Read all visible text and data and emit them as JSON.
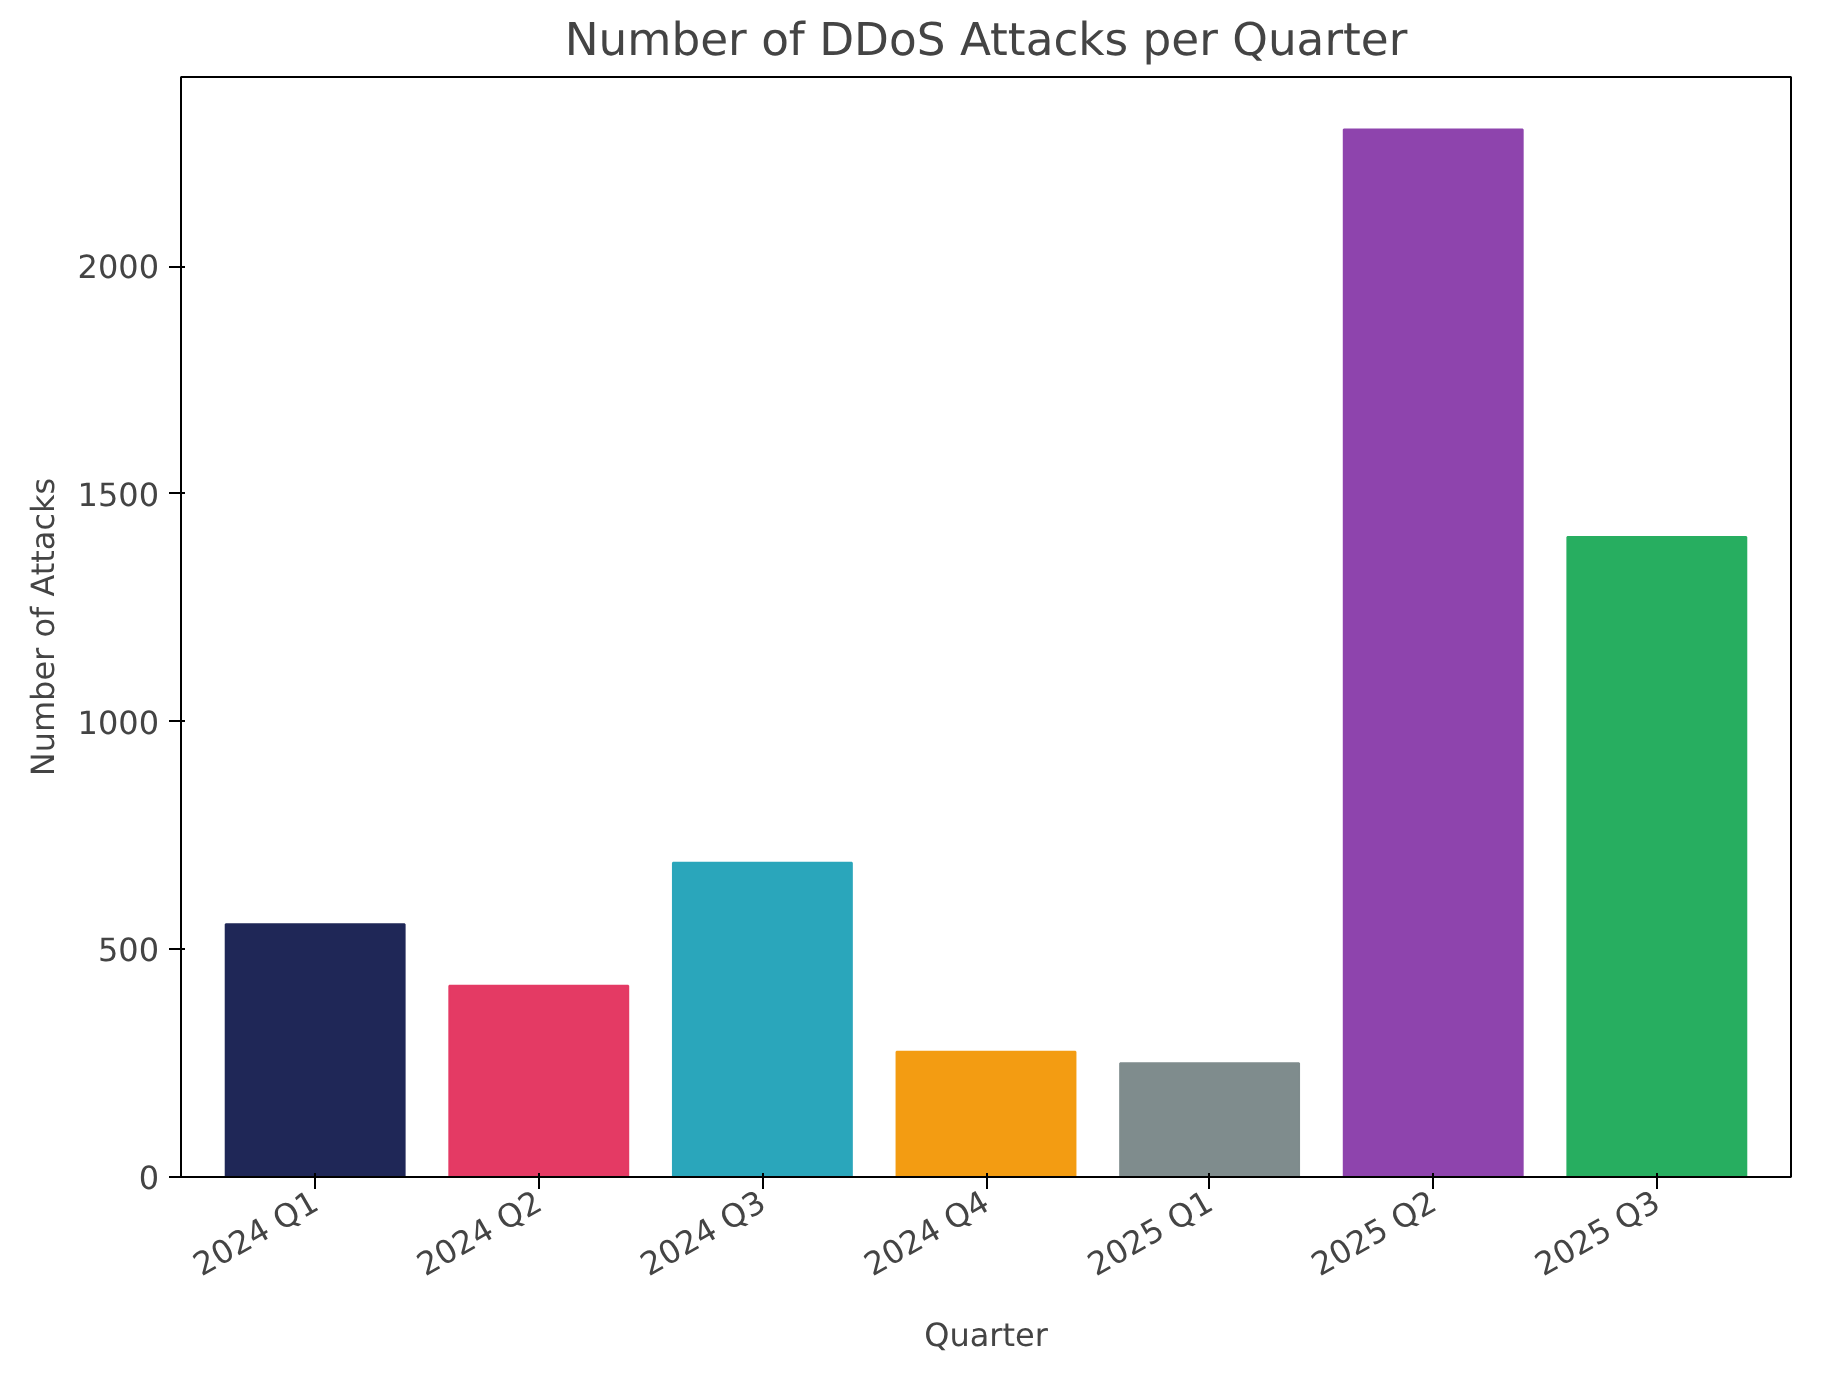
{
  "chart_data": {
    "type": "bar",
    "title": "Number of DDoS Attacks per Quarter",
    "xlabel": "Quarter",
    "ylabel": "Number of Attacks",
    "categories": [
      "2024 Q1",
      "2024 Q2",
      "2024 Q3",
      "2024 Q4",
      "2025 Q1",
      "2025 Q2",
      "2025 Q3"
    ],
    "values": [
      555,
      420,
      690,
      275,
      250,
      2300,
      1405
    ],
    "colors": [
      "#1f2757",
      "#e43a64",
      "#2aa6bb",
      "#f39c12",
      "#7f8c8d",
      "#8e44ad",
      "#27ae60"
    ],
    "ylim": [
      0,
      2415
    ],
    "yticks": [
      0,
      500,
      1000,
      1500,
      2000
    ],
    "grid": false
  }
}
